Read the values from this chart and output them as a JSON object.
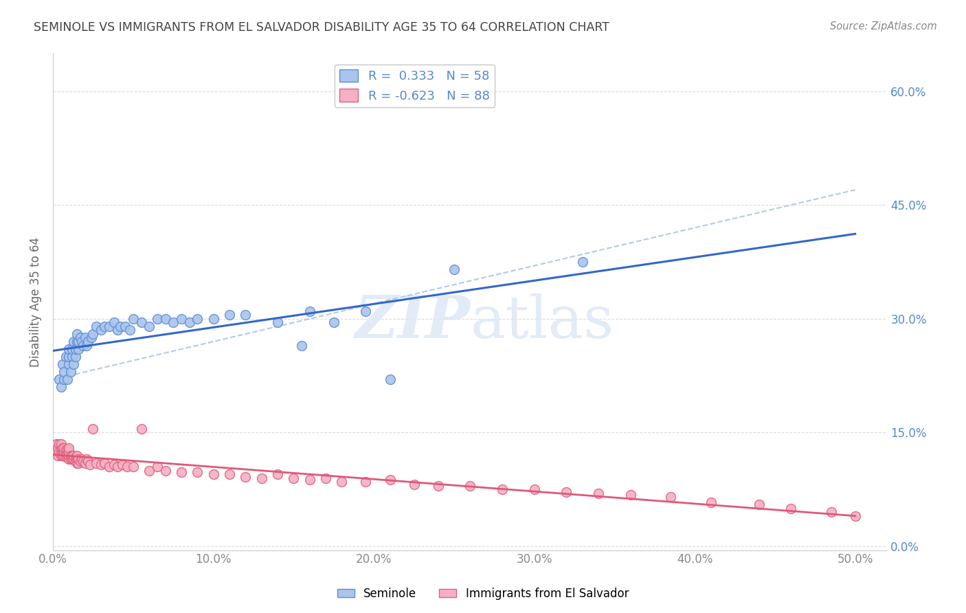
{
  "title": "SEMINOLE VS IMMIGRANTS FROM EL SALVADOR DISABILITY AGE 35 TO 64 CORRELATION CHART",
  "source": "Source: ZipAtlas.com",
  "ylabel": "Disability Age 35 to 64",
  "xlim": [
    0.0,
    0.52
  ],
  "ylim": [
    -0.005,
    0.65
  ],
  "xticks": [
    0.0,
    0.1,
    0.2,
    0.3,
    0.4,
    0.5
  ],
  "yticks": [
    0.0,
    0.15,
    0.3,
    0.45,
    0.6
  ],
  "ytick_labels_right": [
    "0.0%",
    "15.0%",
    "30.0%",
    "45.0%",
    "60.0%"
  ],
  "xtick_labels": [
    "0.0%",
    "10.0%",
    "20.0%",
    "30.0%",
    "40.0%",
    "50.0%"
  ],
  "seminole_color": "#aac4ec",
  "seminole_edge_color": "#5b8fd4",
  "immigrant_color": "#f5b0c5",
  "immigrant_edge_color": "#e0607a",
  "seminole_line_color": "#3366cc",
  "immigrant_line_color": "#e05878",
  "dash_line_color": "#aac4ec",
  "seminole_R": 0.333,
  "seminole_N": 58,
  "immigrant_R": -0.623,
  "immigrant_N": 88,
  "axis_label_color": "#5588cc",
  "grid_color": "#cccccc",
  "title_color": "#444444",
  "watermark_color": "#dde8f5",
  "seminole_scatter_x": [
    0.004,
    0.005,
    0.006,
    0.007,
    0.007,
    0.008,
    0.009,
    0.01,
    0.01,
    0.01,
    0.011,
    0.012,
    0.012,
    0.013,
    0.013,
    0.014,
    0.014,
    0.015,
    0.015,
    0.016,
    0.016,
    0.017,
    0.018,
    0.019,
    0.02,
    0.021,
    0.022,
    0.024,
    0.025,
    0.027,
    0.03,
    0.032,
    0.035,
    0.038,
    0.04,
    0.042,
    0.045,
    0.048,
    0.05,
    0.055,
    0.06,
    0.065,
    0.07,
    0.075,
    0.08,
    0.085,
    0.09,
    0.1,
    0.11,
    0.12,
    0.14,
    0.155,
    0.16,
    0.175,
    0.195,
    0.21,
    0.25,
    0.33
  ],
  "seminole_scatter_y": [
    0.22,
    0.21,
    0.24,
    0.22,
    0.23,
    0.25,
    0.22,
    0.24,
    0.25,
    0.26,
    0.23,
    0.25,
    0.26,
    0.24,
    0.27,
    0.25,
    0.26,
    0.27,
    0.28,
    0.26,
    0.27,
    0.275,
    0.27,
    0.265,
    0.275,
    0.265,
    0.27,
    0.275,
    0.28,
    0.29,
    0.285,
    0.29,
    0.29,
    0.295,
    0.285,
    0.29,
    0.29,
    0.285,
    0.3,
    0.295,
    0.29,
    0.3,
    0.3,
    0.295,
    0.3,
    0.295,
    0.3,
    0.3,
    0.305,
    0.305,
    0.295,
    0.265,
    0.31,
    0.295,
    0.31,
    0.22,
    0.365,
    0.375
  ],
  "immigrant_scatter_x": [
    0.001,
    0.002,
    0.002,
    0.003,
    0.003,
    0.004,
    0.004,
    0.005,
    0.005,
    0.005,
    0.005,
    0.006,
    0.006,
    0.006,
    0.007,
    0.007,
    0.007,
    0.008,
    0.008,
    0.008,
    0.009,
    0.009,
    0.009,
    0.01,
    0.01,
    0.01,
    0.01,
    0.011,
    0.011,
    0.012,
    0.012,
    0.013,
    0.013,
    0.014,
    0.014,
    0.015,
    0.015,
    0.015,
    0.016,
    0.016,
    0.017,
    0.018,
    0.019,
    0.02,
    0.021,
    0.022,
    0.023,
    0.025,
    0.027,
    0.03,
    0.032,
    0.035,
    0.038,
    0.04,
    0.043,
    0.046,
    0.05,
    0.055,
    0.06,
    0.065,
    0.07,
    0.08,
    0.09,
    0.1,
    0.11,
    0.12,
    0.13,
    0.14,
    0.15,
    0.16,
    0.17,
    0.18,
    0.195,
    0.21,
    0.225,
    0.24,
    0.26,
    0.28,
    0.3,
    0.32,
    0.34,
    0.36,
    0.385,
    0.41,
    0.44,
    0.46,
    0.485,
    0.5
  ],
  "immigrant_scatter_y": [
    0.13,
    0.125,
    0.135,
    0.12,
    0.13,
    0.125,
    0.135,
    0.12,
    0.125,
    0.13,
    0.135,
    0.12,
    0.125,
    0.13,
    0.12,
    0.125,
    0.13,
    0.118,
    0.122,
    0.128,
    0.118,
    0.122,
    0.128,
    0.115,
    0.12,
    0.125,
    0.13,
    0.115,
    0.12,
    0.115,
    0.12,
    0.115,
    0.12,
    0.112,
    0.118,
    0.11,
    0.115,
    0.12,
    0.11,
    0.115,
    0.112,
    0.115,
    0.112,
    0.11,
    0.115,
    0.112,
    0.108,
    0.155,
    0.11,
    0.108,
    0.11,
    0.105,
    0.108,
    0.105,
    0.108,
    0.105,
    0.105,
    0.155,
    0.1,
    0.105,
    0.1,
    0.098,
    0.098,
    0.095,
    0.095,
    0.092,
    0.09,
    0.095,
    0.09,
    0.088,
    0.09,
    0.085,
    0.085,
    0.088,
    0.082,
    0.08,
    0.08,
    0.075,
    0.075,
    0.072,
    0.07,
    0.068,
    0.065,
    0.058,
    0.055,
    0.05,
    0.045,
    0.04
  ]
}
